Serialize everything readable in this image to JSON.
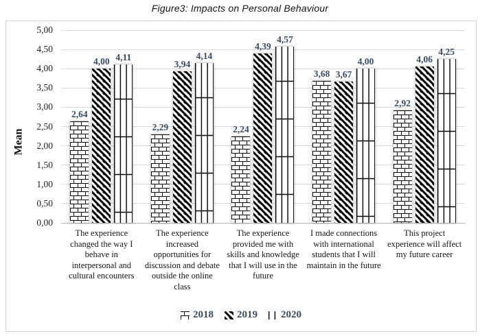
{
  "chart_data": {
    "type": "bar",
    "title": "Figure3: Impacts on Personal Behaviour",
    "xlabel": "",
    "ylabel": "Mean",
    "ylim": [
      0,
      5
    ],
    "ytick_step": 0.5,
    "ytick_labels": [
      "0,00",
      "0,50",
      "1,00",
      "1,50",
      "2,00",
      "2,50",
      "3,00",
      "3,50",
      "4,00",
      "4,50",
      "5,00"
    ],
    "grid": true,
    "legend_position": "bottom",
    "decimal_separator": ",",
    "categories": [
      "The experience changed the way I behave in interpersonal and cultural encounters",
      "The experience increased opportunities for discussion and debate outside the online class",
      "The experience provided me with skills and knowledge that I will use in the future",
      "I made connections with international students that I will maintain in the future",
      "This project experience will affect my future career"
    ],
    "series": [
      {
        "name": "2018",
        "pattern": "brick",
        "values": [
          2.64,
          2.29,
          2.24,
          3.68,
          2.92
        ],
        "labels": [
          "2,64",
          "2,29",
          "2,24",
          "3,68",
          "2,92"
        ]
      },
      {
        "name": "2019",
        "pattern": "diagonal",
        "values": [
          4.0,
          3.94,
          4.39,
          3.67,
          4.06
        ],
        "labels": [
          "4,00",
          "3,94",
          "4,39",
          "3,67",
          "4,06"
        ]
      },
      {
        "name": "2020",
        "pattern": "vertical-lines",
        "values": [
          4.11,
          4.14,
          4.57,
          4.0,
          4.25
        ],
        "labels": [
          "4,11",
          "4,14",
          "4,57",
          "4,00",
          "4,25"
        ]
      }
    ]
  },
  "colors": {
    "bar_fill": "#ffffff",
    "pattern_stroke": "#000000",
    "gridline": "#d9d9d9",
    "axis_line": "#b8b8b8",
    "box_border": "#d2d2d2",
    "text": "#161616",
    "data_label": "#3b4a63",
    "legend_label": "#3b4a63"
  }
}
